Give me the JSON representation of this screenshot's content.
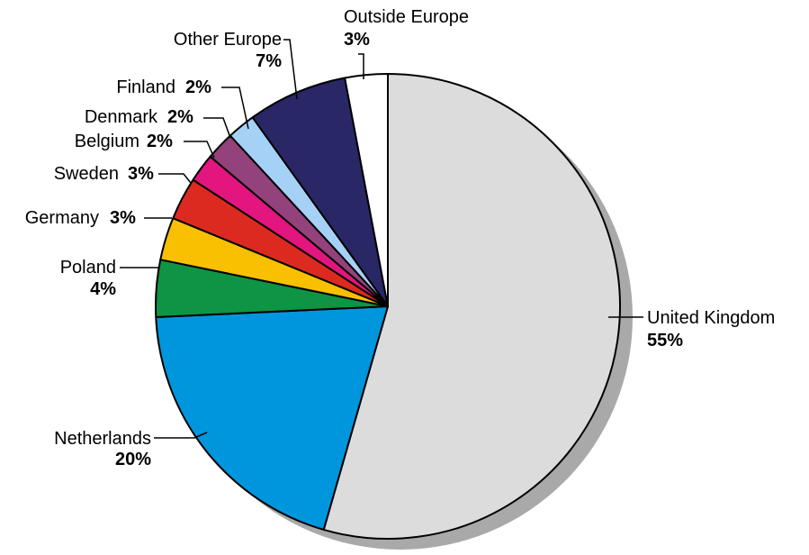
{
  "chart_data": {
    "type": "pie",
    "title": "",
    "slices": [
      {
        "label": "United Kingdom",
        "percent_label": "55%",
        "value": 55,
        "color": "#dcdcdc"
      },
      {
        "label": "Netherlands",
        "percent_label": "20%",
        "value": 20,
        "color": "#0096dd"
      },
      {
        "label": "Poland",
        "percent_label": "4%",
        "value": 4,
        "color": "#0e9444"
      },
      {
        "label": "Germany",
        "percent_label": "3%",
        "value": 3,
        "color": "#f8c000"
      },
      {
        "label": "Sweden",
        "percent_label": "3%",
        "value": 3,
        "color": "#dd2a21"
      },
      {
        "label": "Belgium",
        "percent_label": "2%",
        "value": 2,
        "color": "#e3157f"
      },
      {
        "label": "Denmark",
        "percent_label": "2%",
        "value": 2,
        "color": "#93427c"
      },
      {
        "label": "Finland",
        "percent_label": "2%",
        "value": 2,
        "color": "#a5d1f6"
      },
      {
        "label": "Other Europe",
        "percent_label": "7%",
        "value": 7,
        "color": "#2a2766"
      },
      {
        "label": "Outside Europe",
        "percent_label": "3%",
        "value": 3,
        "color": "#ffffff"
      }
    ],
    "direction": "clockwise",
    "shadow_color": "#a9a9a9",
    "outline_color": "#000000"
  }
}
